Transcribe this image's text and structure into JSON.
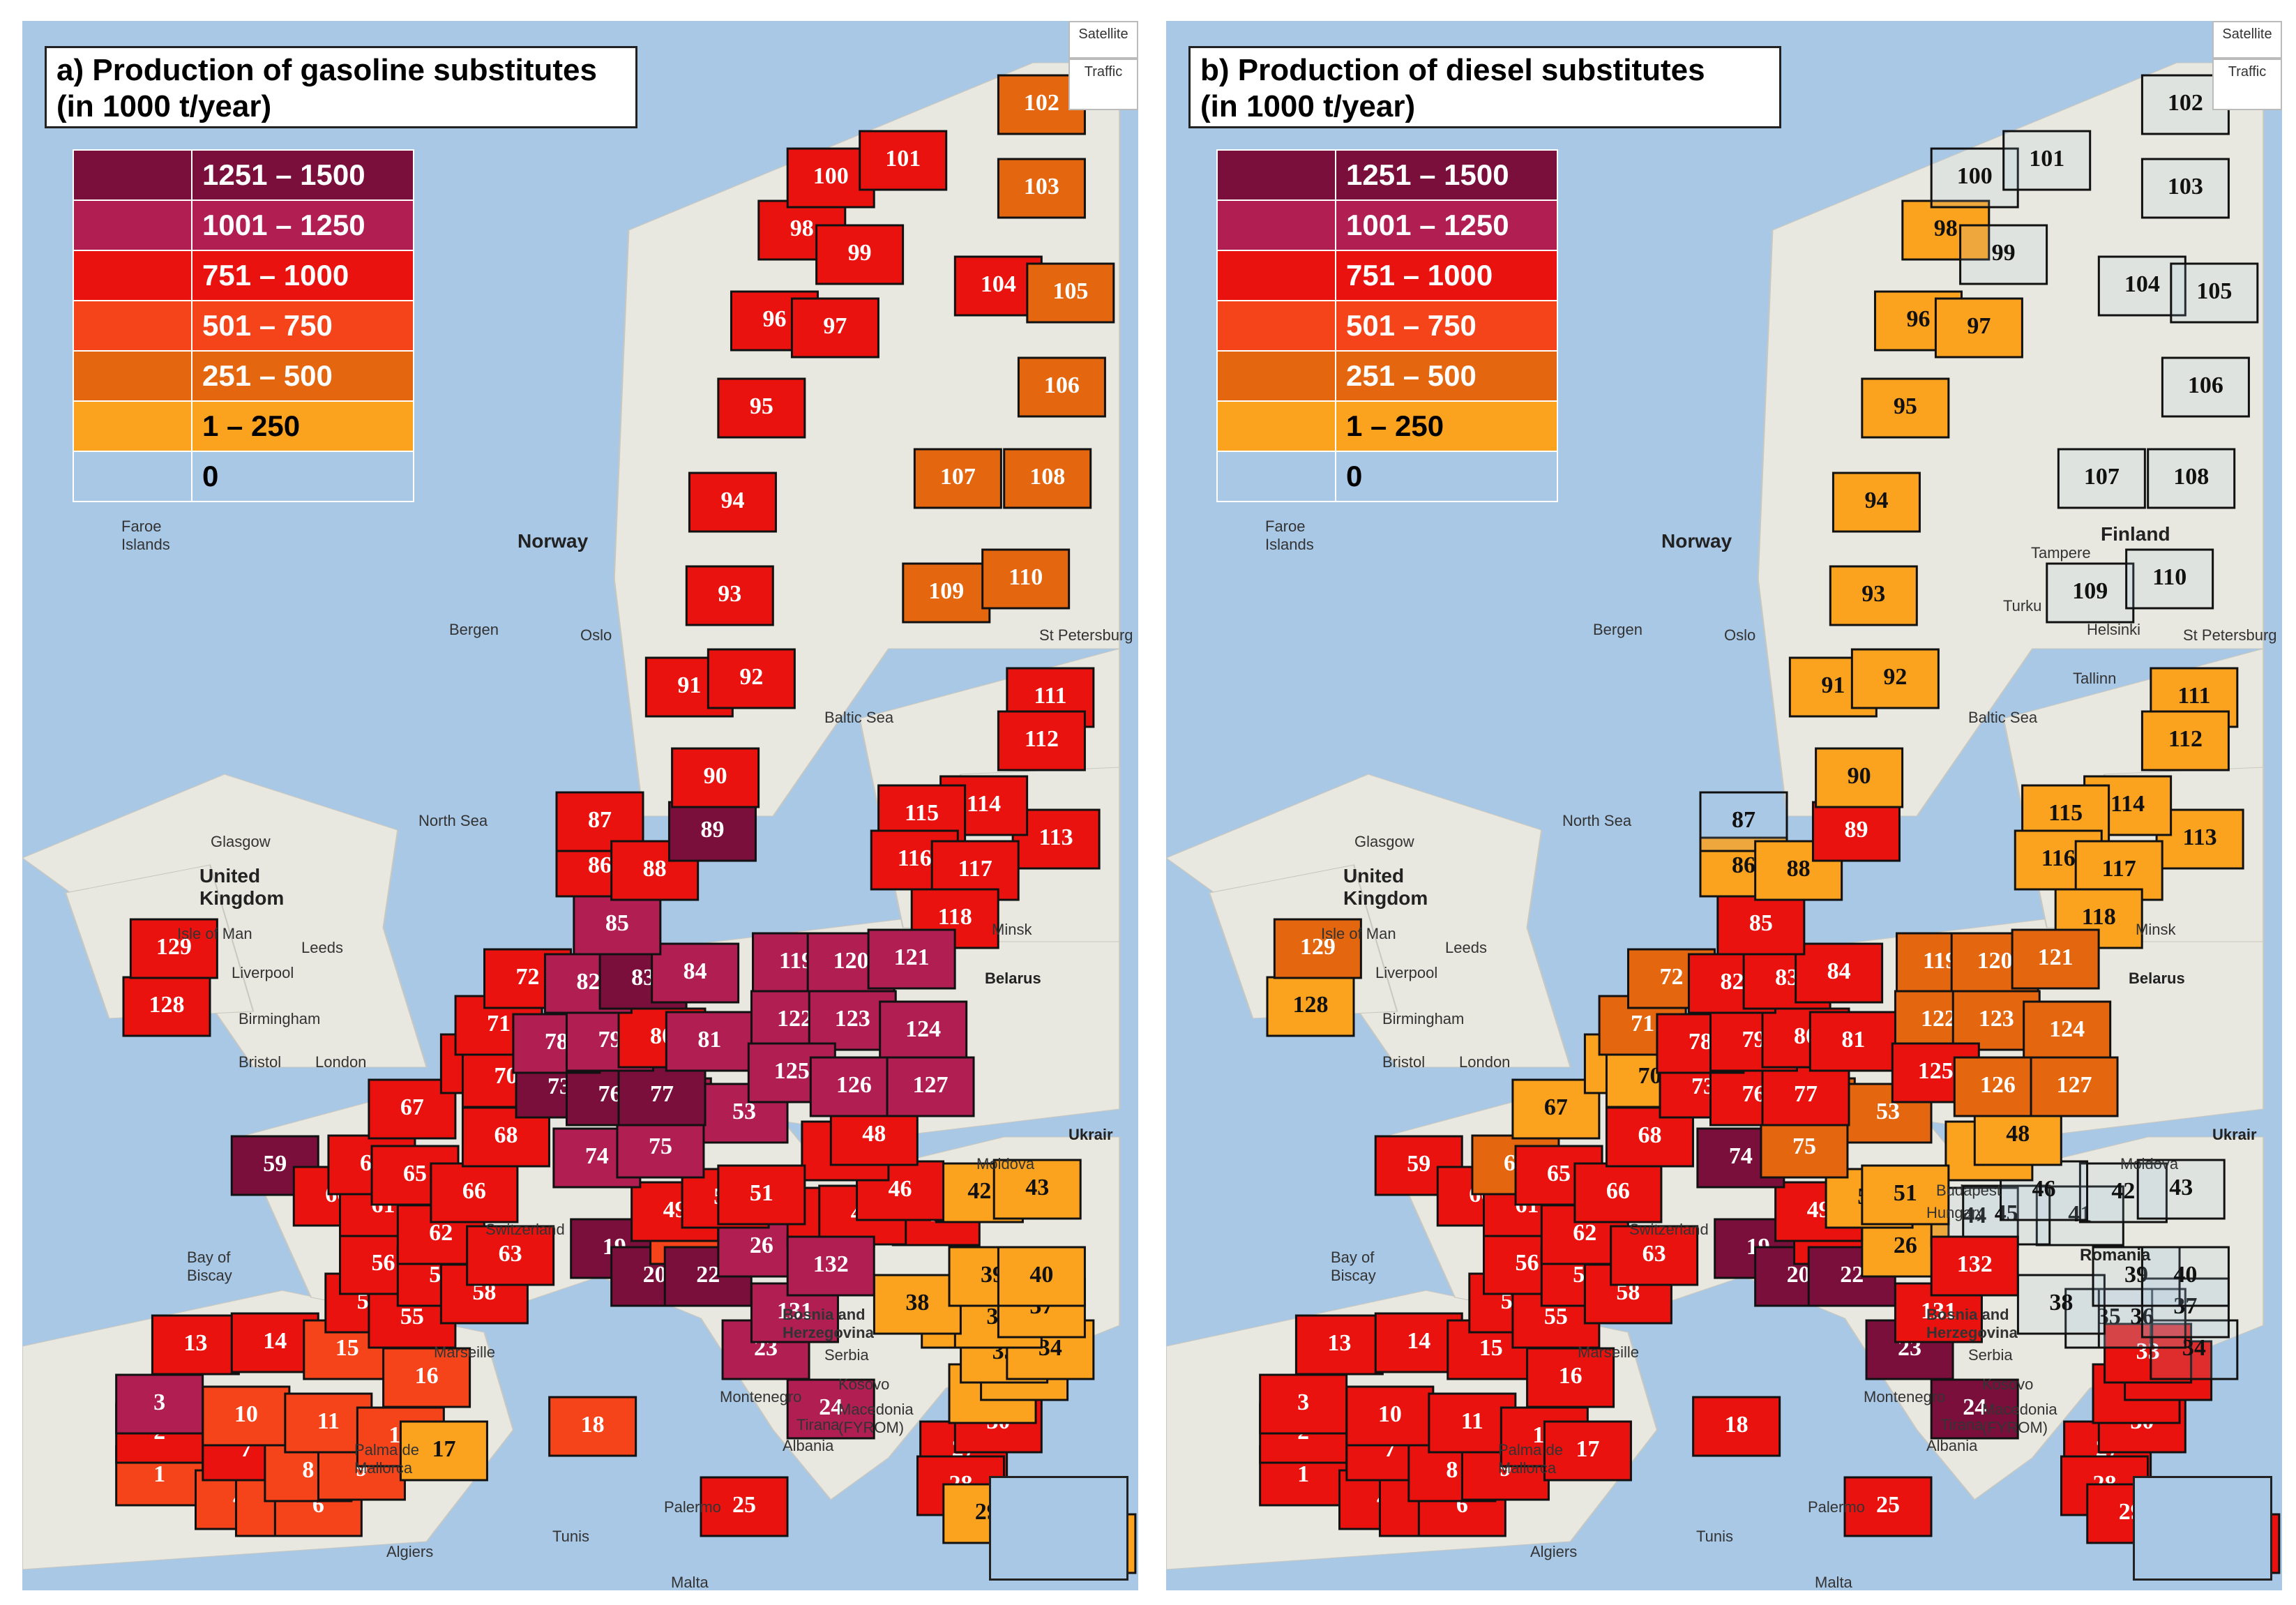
{
  "legend": {
    "classes": [
      {
        "label": "1251 – 1500",
        "color": "#7a0f3c"
      },
      {
        "label": "1001 – 1250",
        "color": "#b01e52"
      },
      {
        "label": "751 – 1000",
        "color": "#e9120e"
      },
      {
        "label": "501 – 750",
        "color": "#f5431a"
      },
      {
        "label": "251 – 500",
        "color": "#e4660e"
      },
      {
        "label": "1 – 250",
        "color": "#fba21f"
      },
      {
        "label": "0",
        "color": "#a8c8e6"
      }
    ]
  },
  "map_controls": {
    "satellite": "Satellite",
    "traffic": "Traffic"
  },
  "place_labels": {
    "norway": "Norway",
    "faroe": "Faroe Islands",
    "bergen": "Bergen",
    "oslo": "Oslo",
    "baltic": "Baltic Sea",
    "north_sea": "North Sea",
    "uk": "United Kingdom",
    "glasgow": "Glasgow",
    "isle_of_man": "Isle of Man",
    "leeds": "Leeds",
    "liverpool": "Liverpool",
    "birmingham": "Birmingham",
    "bristol": "Bristol",
    "london": "London",
    "minsk": "Minsk",
    "belarus": "Belarus",
    "ukraine": "Ukrair",
    "moldova": "Moldova",
    "switzerland": "Switzerland",
    "biscay": "Bay of Biscay",
    "bosnia": "Bosnia and Herzegovina",
    "serbia": "Serbia",
    "montenegro": "Montenegro",
    "kosovo": "Kosovo",
    "macedonia": "Macedonia (FYROM)",
    "albania": "Albania",
    "tirana": "Tirana",
    "palma": "Palma de Mallorca",
    "palermo": "Palermo",
    "tunis": "Tunis",
    "algiers": "Algiers",
    "malta": "Malta",
    "marseille": "Marseille",
    "st_petersburg": "St Petersburg",
    "tallinn": "Tallinn",
    "helsinki": "Helsinki",
    "finland": "Finland",
    "tampere": "Tampere",
    "turku": "Turku",
    "romania": "Romania",
    "hungary": "Hungary",
    "budapest": "Budapest"
  },
  "panels": [
    {
      "id": "a",
      "title_line1": "a) Production of gasoline substitutes",
      "title_line2": "(in 1000 t/year)",
      "region_class": {
        "1": "501-750",
        "2": "751-1000",
        "3": "1001-1250",
        "4": "501-750",
        "5": "501-750",
        "6": "501-750",
        "7": "751-1000",
        "8": "501-750",
        "9": "501-750",
        "10": "501-750",
        "11": "501-750",
        "12": "501-750",
        "13": "751-1000",
        "14": "751-1000",
        "15": "501-750",
        "16": "501-750",
        "17": "1-250",
        "18": "501-750",
        "19": "1251-1500",
        "20": "1251-1500",
        "21": "501-750",
        "22": "1251-1500",
        "23": "1001-1250",
        "24": "1001-1250",
        "25": "751-1000",
        "26": "1001-1250",
        "27": "751-1000",
        "28": "751-1000",
        "29": "1-250",
        "30": "751-1000",
        "31": "1-250",
        "32": "1-250",
        "33": "1-250",
        "34": "1-250",
        "35": "1-250",
        "36": "1-250",
        "37": "1-250",
        "38": "1-250",
        "39": "1-250",
        "40": "1-250",
        "41": "751-1000",
        "42": "1-250",
        "43": "1-250",
        "44": "751-1000",
        "45": "751-1000",
        "46": "751-1000",
        "47": "751-1000",
        "48": "751-1000",
        "49": "751-1000",
        "50": "751-1000",
        "51": "751-1000",
        "52": "1001-1250",
        "53": "1001-1250",
        "54": "751-1000",
        "55": "751-1000",
        "56": "751-1000",
        "57": "751-1000",
        "58": "751-1000",
        "59": "1251-1500",
        "60": "751-1000",
        "61": "751-1000",
        "62": "751-1000",
        "63": "751-1000",
        "64": "751-1000",
        "65": "751-1000",
        "66": "751-1000",
        "67": "751-1000",
        "68": "751-1000",
        "69": "751-1000",
        "70": "751-1000",
        "71": "751-1000",
        "72": "751-1000",
        "73": "1251-1500",
        "74": "1001-1250",
        "75": "1001-1250",
        "76": "1251-1500",
        "77": "1251-1500",
        "78": "1001-1250",
        "79": "1001-1250",
        "80": "751-1000",
        "81": "1001-1250",
        "82": "1001-1250",
        "83": "1251-1500",
        "84": "1001-1250",
        "85": "1001-1250",
        "86": "751-1000",
        "87": "751-1000",
        "88": "751-1000",
        "89": "1251-1500",
        "90": "751-1000",
        "91": "751-1000",
        "92": "751-1000",
        "93": "751-1000",
        "94": "751-1000",
        "95": "751-1000",
        "96": "751-1000",
        "97": "751-1000",
        "98": "751-1000",
        "99": "751-1000",
        "100": "751-1000",
        "101": "751-1000",
        "102": "251-500",
        "103": "251-500",
        "104": "751-1000",
        "105": "251-500",
        "106": "251-500",
        "107": "251-500",
        "108": "251-500",
        "109": "251-500",
        "110": "251-500",
        "111": "751-1000",
        "112": "751-1000",
        "113": "751-1000",
        "114": "751-1000",
        "115": "751-1000",
        "116": "751-1000",
        "117": "751-1000",
        "118": "751-1000",
        "119": "1001-1250",
        "120": "1001-1250",
        "121": "1001-1250",
        "122": "1001-1250",
        "123": "1001-1250",
        "124": "1001-1250",
        "125": "1001-1250",
        "126": "1001-1250",
        "127": "1001-1250",
        "128": "751-1000",
        "129": "751-1000",
        "130": "1-250",
        "131": "1001-1250",
        "132": "1001-1250"
      }
    },
    {
      "id": "b",
      "title_line1": "b) Production of diesel substitutes",
      "title_line2": "(in 1000 t/year)",
      "region_class": {
        "1": "751-1000",
        "2": "751-1000",
        "3": "751-1000",
        "4": "751-1000",
        "5": "751-1000",
        "6": "751-1000",
        "7": "751-1000",
        "8": "751-1000",
        "9": "751-1000",
        "10": "751-1000",
        "11": "751-1000",
        "12": "751-1000",
        "13": "751-1000",
        "14": "751-1000",
        "15": "751-1000",
        "16": "751-1000",
        "17": "751-1000",
        "18": "751-1000",
        "19": "1251-1500",
        "20": "1251-1500",
        "21": "751-1000",
        "22": "1251-1500",
        "23": "1251-1500",
        "24": "1251-1500",
        "25": "751-1000",
        "26": "1-250",
        "27": "751-1000",
        "28": "751-1000",
        "29": "751-1000",
        "30": "751-1000",
        "31": "751-1000",
        "32": "751-1000",
        "33": "751-1000",
        "34": "0",
        "35": "0",
        "36": "0",
        "37": "0",
        "38": "0",
        "39": "0",
        "40": "0",
        "41": "0",
        "42": "0",
        "43": "0",
        "44": "0",
        "45": "0",
        "46": "0",
        "47": "1-250",
        "48": "1-250",
        "49": "751-1000",
        "50": "1-250",
        "51": "1-250",
        "52": "251-500",
        "53": "251-500",
        "54": "751-1000",
        "55": "751-1000",
        "56": "751-1000",
        "57": "751-1000",
        "58": "751-1000",
        "59": "751-1000",
        "60": "751-1000",
        "61": "751-1000",
        "62": "751-1000",
        "63": "751-1000",
        "64": "251-500",
        "65": "751-1000",
        "66": "751-1000",
        "67": "1-250",
        "68": "751-1000",
        "69": "1-250",
        "70": "1-250",
        "71": "251-500",
        "72": "251-500",
        "73": "751-1000",
        "74": "1251-1500",
        "75": "251-500",
        "76": "751-1000",
        "77": "751-1000",
        "78": "751-1000",
        "79": "751-1000",
        "80": "751-1000",
        "81": "751-1000",
        "82": "751-1000",
        "83": "751-1000",
        "84": "751-1000",
        "85": "751-1000",
        "86": "1-250",
        "87": "0",
        "88": "1-250",
        "89": "751-1000",
        "90": "1-250",
        "91": "1-250",
        "92": "1-250",
        "93": "1-250",
        "94": "1-250",
        "95": "1-250",
        "96": "1-250",
        "97": "1-250",
        "98": "1-250",
        "99": "0",
        "100": "0",
        "101": "0",
        "102": "0",
        "103": "0",
        "104": "0",
        "105": "0",
        "106": "0",
        "107": "0",
        "108": "0",
        "109": "0",
        "110": "0",
        "111": "1-250",
        "112": "1-250",
        "113": "1-250",
        "114": "1-250",
        "115": "1-250",
        "116": "1-250",
        "117": "1-250",
        "118": "1-250",
        "119": "251-500",
        "120": "251-500",
        "121": "251-500",
        "122": "251-500",
        "123": "251-500",
        "124": "251-500",
        "125": "751-1000",
        "126": "251-500",
        "127": "251-500",
        "128": "1-250",
        "129": "251-500",
        "130": "751-1000",
        "131": "751-1000",
        "132": "751-1000"
      }
    }
  ]
}
